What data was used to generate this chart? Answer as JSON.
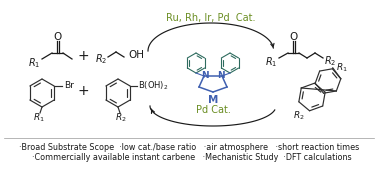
{
  "bg_color": "#ffffff",
  "bullet_line1": "·Broad Substrate Scope  ·low cat./base ratio   ·air atmosphere   ·short reaction times",
  "bullet_line2": "  ·Commercially available instant carbene   ·Mechanistic Study  ·DFT calculations",
  "top_catalyst": "Ru, Rh, Ir, Pd  Cat.",
  "bottom_catalyst": "Pd Cat.",
  "catalyst_color": "#6b8e23",
  "text_color": "#1a1a1a",
  "ring_color": "#2e2e2e",
  "nhc_color": "#4060b0",
  "nhc_ring_color": "#2e6b5e",
  "bullet_fontsize": 5.8,
  "cat_fontsize": 7.0
}
